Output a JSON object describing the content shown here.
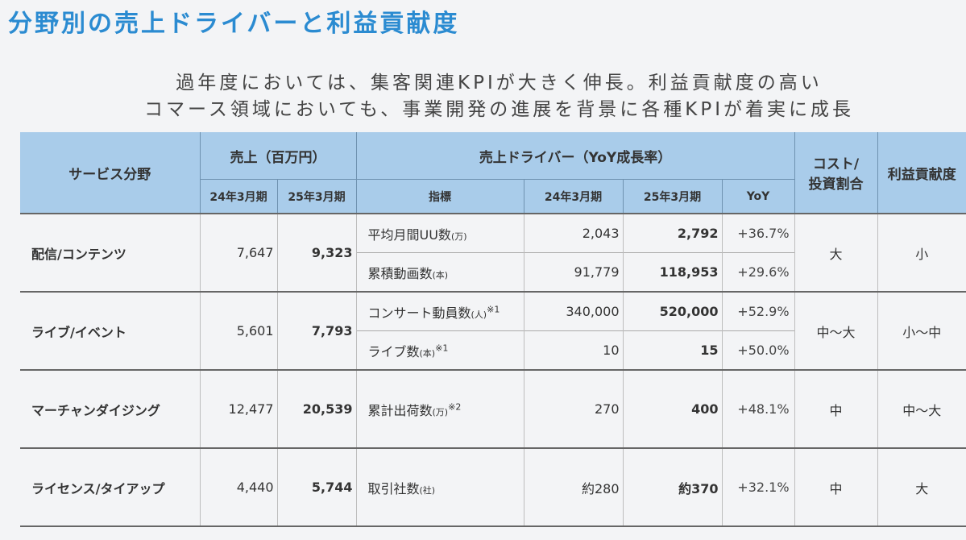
{
  "title": "分野別の売上ドライバーと利益貢献度",
  "subtitle": [
    "過年度においては、集客関連KPIが大きく伸長。利益貢献度の高い",
    "コマース領域においても、事業開発の進展を背景に各種KPIが着実に成長"
  ],
  "header": {
    "service": "サービス分野",
    "sales": "売上（百万円）",
    "drivers": "売上ドライバー（YoY成長率）",
    "cost_line1": "コスト/",
    "cost_line2": "投資割合",
    "profit": "利益貢献度",
    "fy24": "24年3月期",
    "fy25": "25年3月期",
    "metric": "指標",
    "d_fy24": "24年3月期",
    "d_fy25": "25年3月期",
    "yoy": "YoY"
  },
  "rows": [
    {
      "service": "配信/コンテンツ",
      "sales24": "7,647",
      "sales25": "9,323",
      "cost": "大",
      "profit": "小",
      "metrics": [
        {
          "name": "平均月間UU数",
          "unit": "(万)",
          "note": "",
          "v24": "2,043",
          "v25": "2,792",
          "yoy": "+36.7%"
        },
        {
          "name": "累積動画数",
          "unit": "(本)",
          "note": "",
          "v24": "91,779",
          "v25": "118,953",
          "yoy": "+29.6%"
        }
      ]
    },
    {
      "service": "ライブ/イベント",
      "sales24": "5,601",
      "sales25": "7,793",
      "cost": "中〜大",
      "profit": "小〜中",
      "metrics": [
        {
          "name": "コンサート動員数",
          "unit": "(人)",
          "note": "※1",
          "v24": "340,000",
          "v25": "520,000",
          "yoy": "+52.9%"
        },
        {
          "name": "ライブ数",
          "unit": "(本)",
          "note": "※1",
          "v24": "10",
          "v25": "15",
          "yoy": "+50.0%"
        }
      ]
    },
    {
      "service": "マーチャンダイジング",
      "sales24": "12,477",
      "sales25": "20,539",
      "cost": "中",
      "profit": "中〜大",
      "metrics": [
        {
          "name": "累計出荷数",
          "unit": "(万)",
          "note": "※2",
          "v24": "270",
          "v25": "400",
          "yoy": "+48.1%"
        }
      ]
    },
    {
      "service": "ライセンス/タイアップ",
      "sales24": "4,440",
      "sales25": "5,744",
      "cost": "中",
      "profit": "大",
      "metrics": [
        {
          "name": "取引社数",
          "unit": "(社)",
          "note": "",
          "v24": "約280",
          "v25": "約370",
          "yoy": "+32.1%"
        }
      ]
    }
  ],
  "colors": {
    "title": "#2b8bd1",
    "header_bg": "#a9ccea"
  }
}
